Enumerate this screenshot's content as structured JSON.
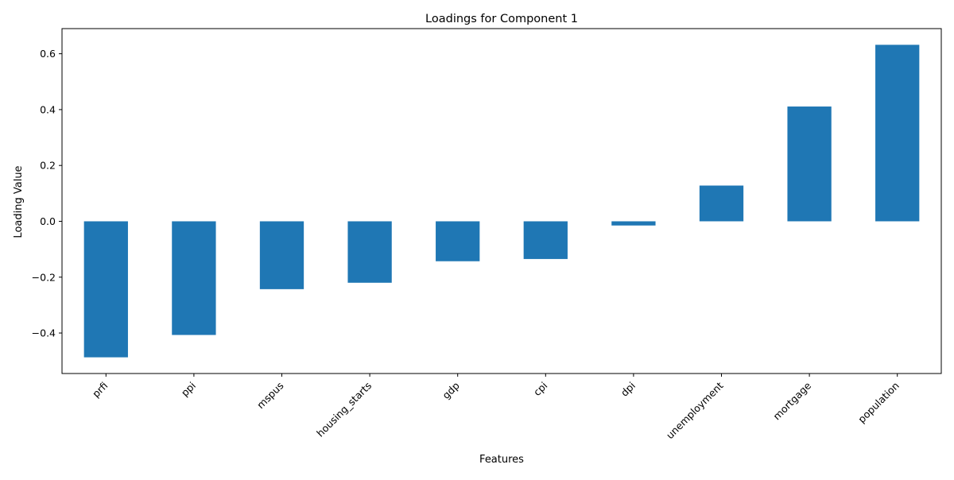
{
  "chart_data": {
    "type": "bar",
    "title": "Loadings for Component 1",
    "xlabel": "Features",
    "ylabel": "Loading Value",
    "categories": [
      "prfi",
      "ppi",
      "mspus",
      "housing_starts",
      "gdp",
      "cpi",
      "dpi",
      "unemployment",
      "mortgage",
      "population"
    ],
    "values": [
      -0.487,
      -0.407,
      -0.243,
      -0.22,
      -0.143,
      -0.135,
      -0.015,
      0.128,
      0.411,
      0.632
    ],
    "ylim": [
      -0.545,
      0.69
    ],
    "yticks": [
      -0.4,
      -0.2,
      0.0,
      0.2,
      0.4,
      0.6
    ],
    "ytick_labels": [
      "−0.4",
      "−0.2",
      "0.0",
      "0.2",
      "0.4",
      "0.6"
    ],
    "bar_color": "#1f77b4",
    "grid": false,
    "legend": "none"
  }
}
